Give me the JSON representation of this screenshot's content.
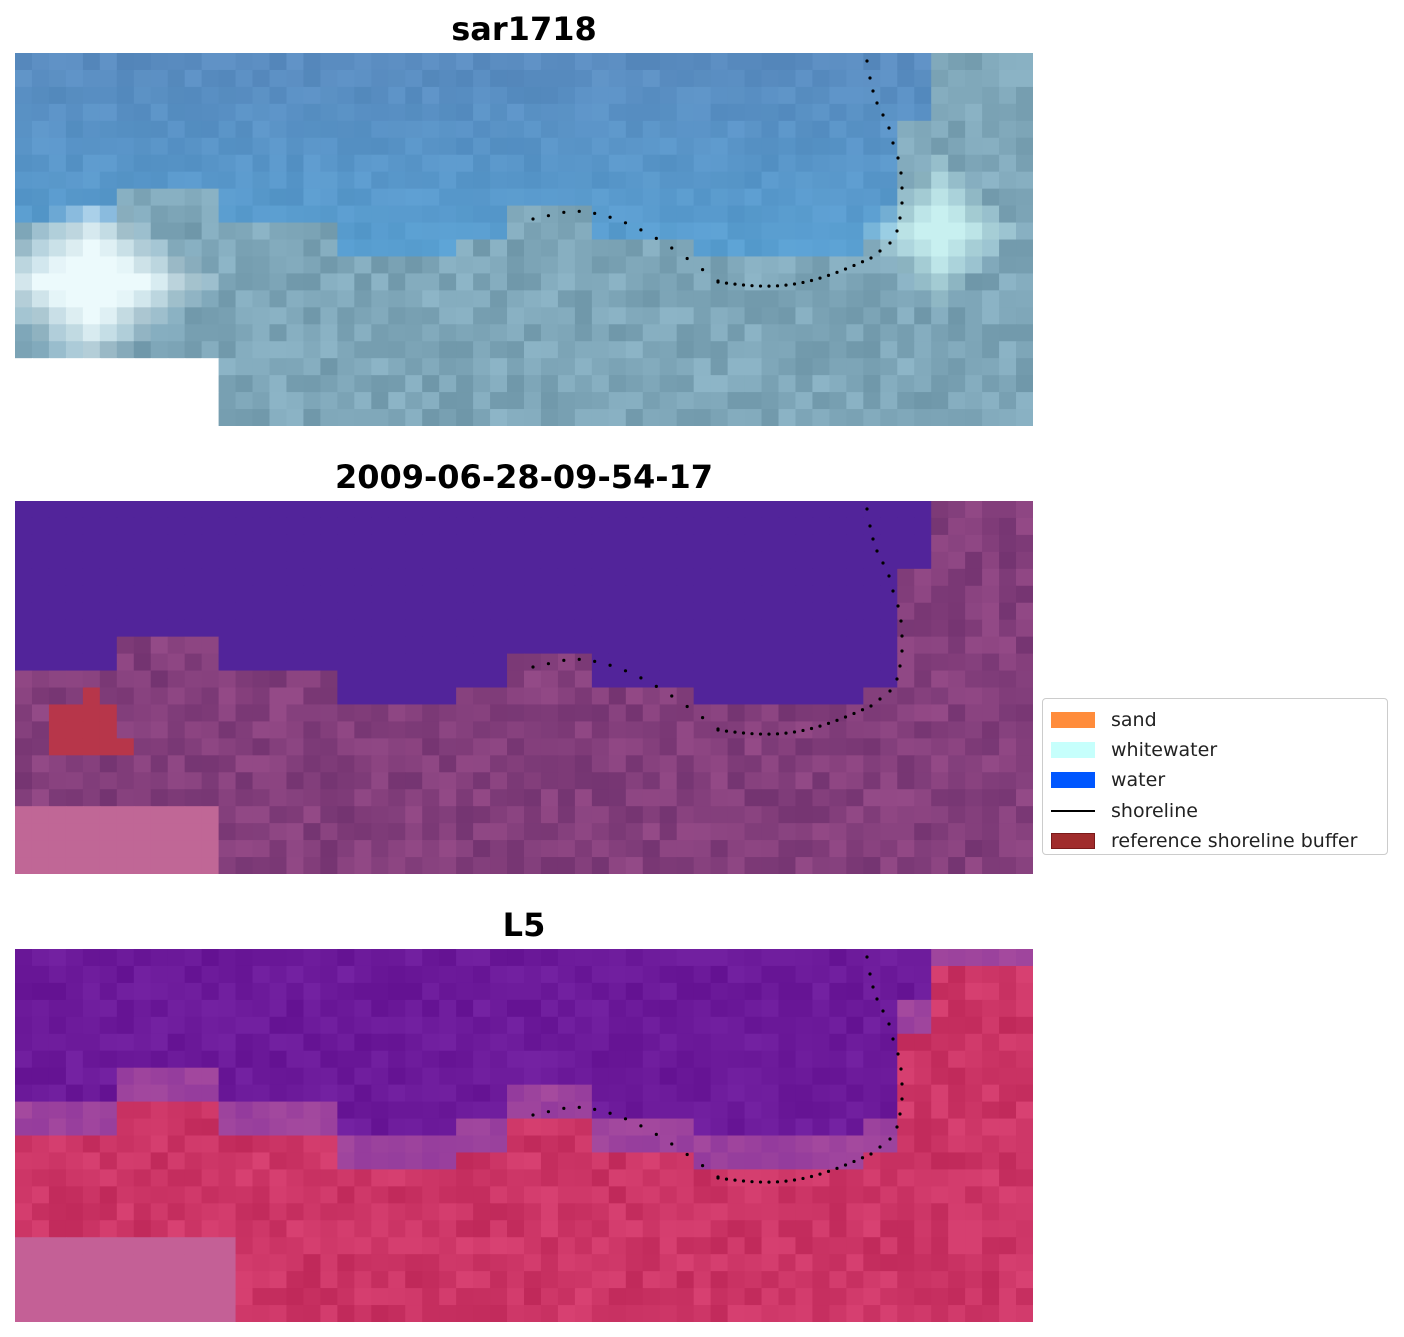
{
  "panels": [
    {
      "title": "sar1718",
      "scene": "rgb"
    },
    {
      "title": "2009-06-28-09-54-17",
      "scene": "classified"
    },
    {
      "title": "L5",
      "scene": "index"
    }
  ],
  "legend": {
    "items": [
      {
        "label": "sand",
        "kind": "patch",
        "color": "#ff8c3b",
        "edge": "#ff8c3b"
      },
      {
        "label": "whitewater",
        "kind": "patch",
        "color": "#c6fffc",
        "edge": "#c6fffc"
      },
      {
        "label": "water",
        "kind": "patch",
        "color": "#0057ff",
        "edge": "#0057ff"
      },
      {
        "label": "shoreline",
        "kind": "line",
        "color": "#000000"
      },
      {
        "label": "reference shoreline buffer",
        "kind": "patch",
        "color": "#a02c2c",
        "edge": "#7a1a1a"
      }
    ]
  },
  "colors": {
    "sea_rgb": "#5a8cc0",
    "land_rgb": "#7ea6b8",
    "water_class": "#52249a",
    "land_class": "#843f7c",
    "nodata_class": "#c06796",
    "buffer_class": "#b7364a",
    "water_index": "#6c1a9a",
    "land_index": "#cc3566",
    "nodata_index": "#c46096",
    "shoreline_dots": "#000000"
  }
}
